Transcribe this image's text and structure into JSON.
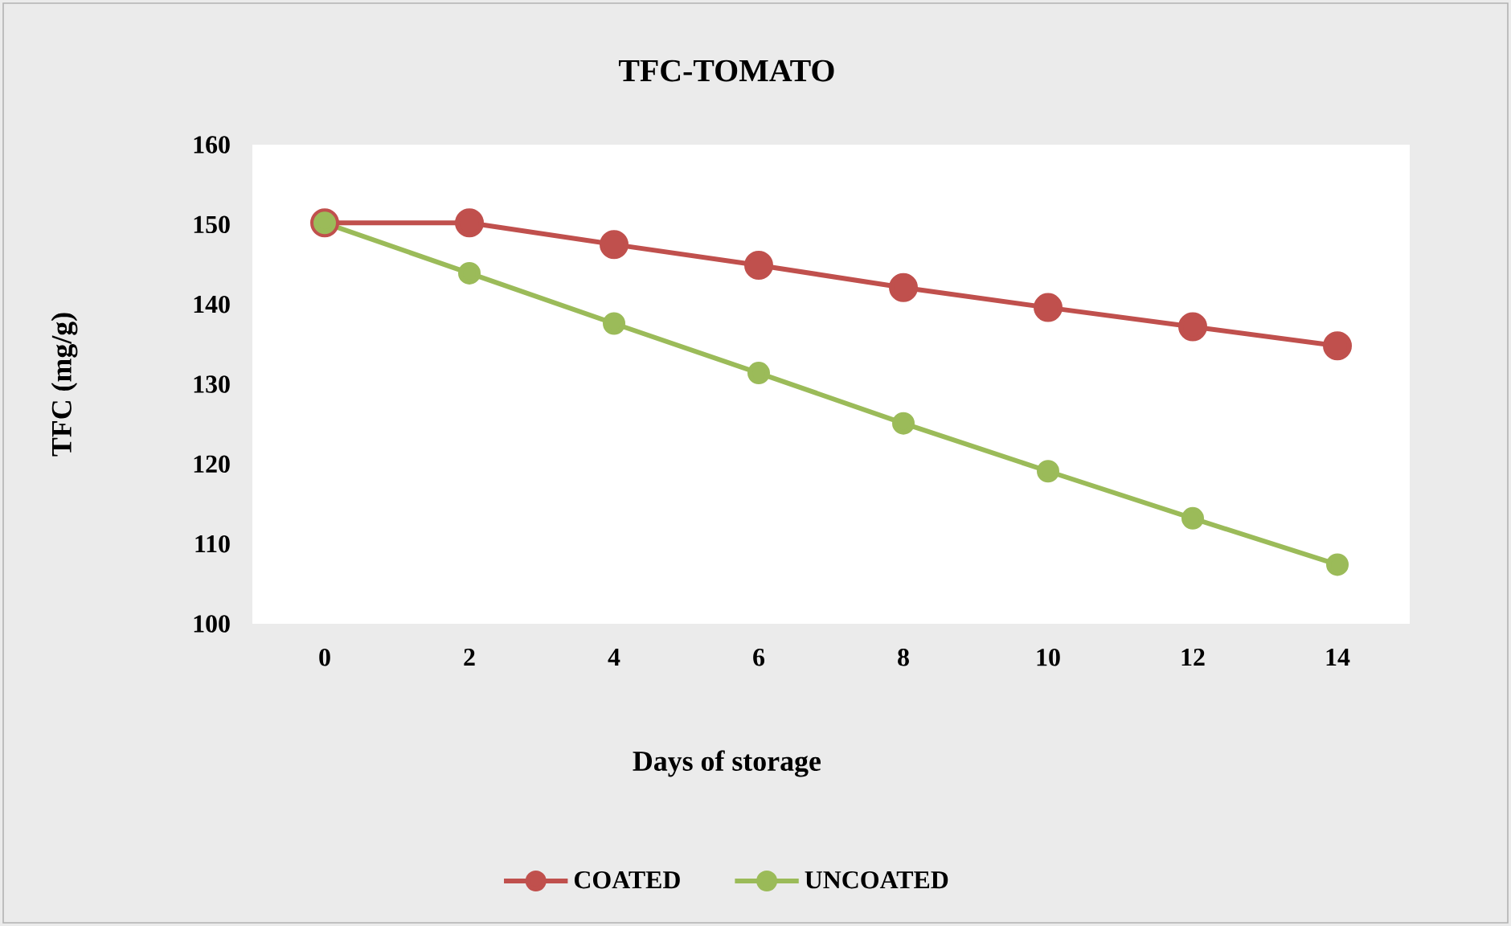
{
  "chart_data": {
    "type": "line",
    "title": "TFC-TOMATO",
    "xlabel": "Days of storage",
    "ylabel": "TFC (mg/g)",
    "categories": [
      "0",
      "2",
      "4",
      "6",
      "8",
      "10",
      "12",
      "14"
    ],
    "series": [
      {
        "name": "COATED",
        "color": "#c0504d",
        "values": [
          150.2,
          150.2,
          147.5,
          144.9,
          142.1,
          139.6,
          137.2,
          134.8
        ]
      },
      {
        "name": "UNCOATED",
        "color": "#9bbb59",
        "values": [
          150.2,
          143.9,
          137.6,
          131.4,
          125.1,
          119.1,
          113.2,
          107.4
        ]
      }
    ],
    "ylim": [
      100,
      160
    ],
    "yticks": [
      100,
      110,
      120,
      130,
      140,
      150,
      160
    ],
    "marker": "circle",
    "legend": "bottom"
  }
}
